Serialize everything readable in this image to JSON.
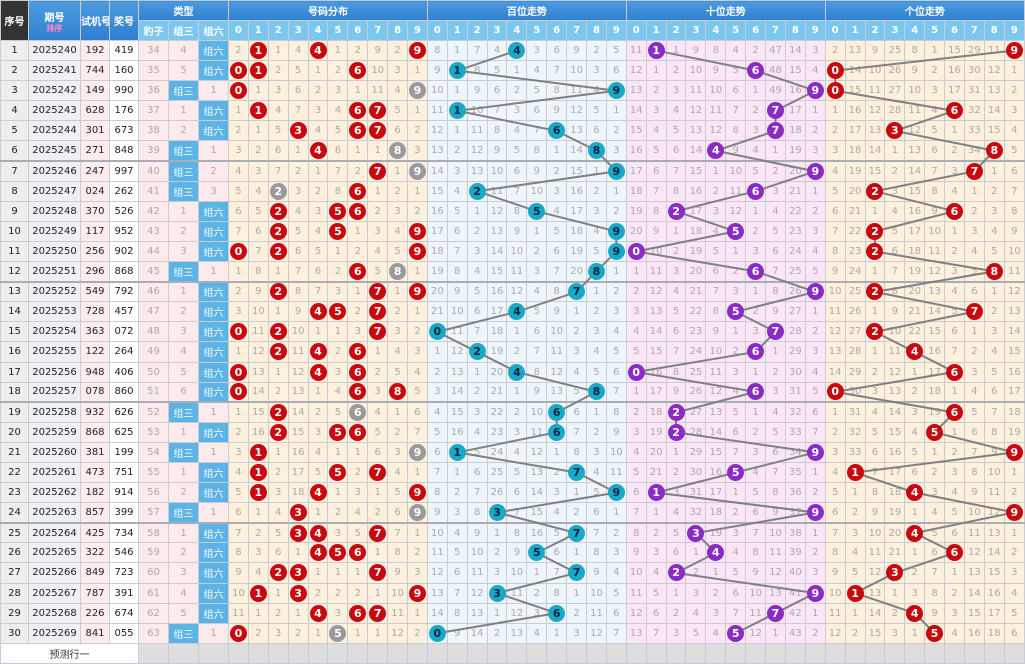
{
  "header": {
    "seq": "序号",
    "issue": "期号",
    "sort": "排序",
    "test": "试机号",
    "draw": "奖号",
    "type": "类型",
    "baozi": "豹子",
    "zusan": "组三",
    "zuliu": "组六",
    "dist": "号码分布",
    "hundreds": "百位走势",
    "tens": "十位走势",
    "units": "个位走势",
    "digits": [
      "0",
      "1",
      "2",
      "3",
      "4",
      "5",
      "6",
      "7",
      "8",
      "9"
    ]
  },
  "colors": {
    "dist_ball": "#c8070e",
    "repeat_ball": "#9a9a9a",
    "hundreds_ball": "#19a9c7",
    "tens_ball": "#8a2bc4",
    "units_ball": "#c8070e",
    "header": "#2f7fcf"
  },
  "rows": [
    [
      "1",
      "2025240",
      "192",
      "419",
      "34",
      "4",
      "组六"
    ],
    [
      "2",
      "2025241",
      "744",
      "160",
      "35",
      "5",
      "组六"
    ],
    [
      "3",
      "2025242",
      "149",
      "990",
      "36",
      "组三",
      "1"
    ],
    [
      "4",
      "2025243",
      "628",
      "176",
      "37",
      "1",
      "组六"
    ],
    [
      "5",
      "2025244",
      "301",
      "673",
      "38",
      "2",
      "组六"
    ],
    [
      "6",
      "2025245",
      "271",
      "848",
      "39",
      "组三",
      "1"
    ],
    [
      "7",
      "2025246",
      "247",
      "997",
      "40",
      "组三",
      "2"
    ],
    [
      "8",
      "2025247",
      "024",
      "262",
      "41",
      "组三",
      "3"
    ],
    [
      "9",
      "2025248",
      "370",
      "526",
      "42",
      "1",
      "组六"
    ],
    [
      "10",
      "2025249",
      "117",
      "952",
      "43",
      "2",
      "组六"
    ],
    [
      "11",
      "2025250",
      "256",
      "902",
      "44",
      "3",
      "组六"
    ],
    [
      "12",
      "2025251",
      "296",
      "868",
      "45",
      "组三",
      "1"
    ],
    [
      "13",
      "2025252",
      "549",
      "792",
      "46",
      "1",
      "组六"
    ],
    [
      "14",
      "2025253",
      "728",
      "457",
      "47",
      "2",
      "组六"
    ],
    [
      "15",
      "2025254",
      "363",
      "072",
      "48",
      "3",
      "组六"
    ],
    [
      "16",
      "2025255",
      "122",
      "264",
      "49",
      "4",
      "组六"
    ],
    [
      "17",
      "2025256",
      "948",
      "406",
      "50",
      "5",
      "组六"
    ],
    [
      "18",
      "2025257",
      "078",
      "860",
      "51",
      "6",
      "组六"
    ],
    [
      "19",
      "2025258",
      "932",
      "626",
      "52",
      "组三",
      "1"
    ],
    [
      "20",
      "2025259",
      "868",
      "625",
      "53",
      "1",
      "组六"
    ],
    [
      "21",
      "2025260",
      "381",
      "199",
      "54",
      "组三",
      "1"
    ],
    [
      "22",
      "2025261",
      "473",
      "751",
      "55",
      "1",
      "组六"
    ],
    [
      "23",
      "2025262",
      "182",
      "914",
      "56",
      "2",
      "组六"
    ],
    [
      "24",
      "2025263",
      "857",
      "399",
      "57",
      "组三",
      "1"
    ],
    [
      "25",
      "2025264",
      "425",
      "734",
      "58",
      "1",
      "组六"
    ],
    [
      "26",
      "2025265",
      "322",
      "546",
      "59",
      "2",
      "组六"
    ],
    [
      "27",
      "2025266",
      "849",
      "723",
      "60",
      "3",
      "组六"
    ],
    [
      "28",
      "2025267",
      "787",
      "391",
      "61",
      "4",
      "组六"
    ],
    [
      "29",
      "2025268",
      "226",
      "674",
      "62",
      "5",
      "组六"
    ],
    [
      "30",
      "2025269",
      "841",
      "055",
      "63",
      "组三",
      "1"
    ]
  ],
  "first_row_misses": {
    "dist": [
      2,
      0,
      1,
      4,
      0,
      1,
      2,
      9,
      2,
      0
    ],
    "hundreds": [
      8,
      1,
      7,
      4,
      0,
      3,
      6,
      9,
      2,
      5
    ],
    "tens": [
      11,
      0,
      1,
      9,
      8,
      4,
      2,
      47,
      14,
      3
    ],
    "units": [
      2,
      13,
      9,
      25,
      8,
      1,
      15,
      29,
      11,
      0
    ]
  },
  "predict_label": "预测行一"
}
